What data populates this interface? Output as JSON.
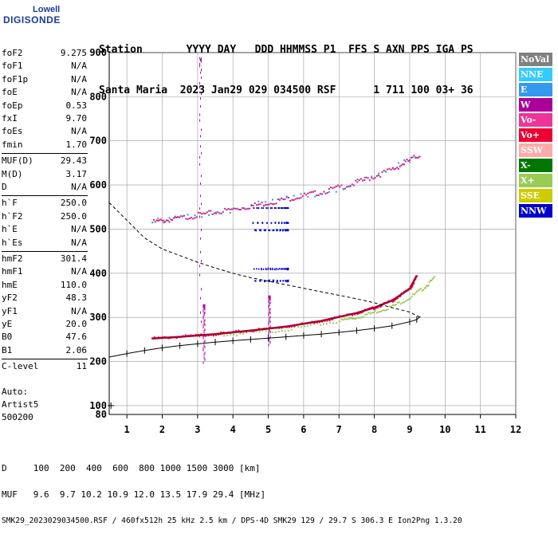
{
  "logo": {
    "line1": "Lowell",
    "line2": "DIGISONDE"
  },
  "header": {
    "line1": "Station       YYYY DAY   DDD HHMMSS P1  FFS S AXN PPS IGA PS",
    "line2": "Santa Maria  2023 Jan29 029 034500 RSF      1 711 100 03+ 36"
  },
  "params": [
    {
      "name": "foF2",
      "value": "9.275"
    },
    {
      "name": "foF1",
      "value": "N/A"
    },
    {
      "name": "foF1p",
      "value": "N/A"
    },
    {
      "name": "foE",
      "value": "N/A"
    },
    {
      "name": "foEp",
      "value": "0.53"
    },
    {
      "name": "fxI",
      "value": "9.70"
    },
    {
      "name": "foEs",
      "value": "N/A"
    },
    {
      "name": "fmin",
      "value": "1.70"
    },
    {
      "name": "MUF(D)",
      "value": "29.43"
    },
    {
      "name": "M(D)",
      "value": "3.17"
    },
    {
      "name": "D",
      "value": "N/A"
    },
    {
      "name": "h`F",
      "value": "250.0"
    },
    {
      "name": "h`F2",
      "value": "250.0"
    },
    {
      "name": "h`E",
      "value": "N/A"
    },
    {
      "name": "h`Es",
      "value": "N/A"
    },
    {
      "name": "hmF2",
      "value": "301.4"
    },
    {
      "name": "hmF1",
      "value": "N/A"
    },
    {
      "name": "hmE",
      "value": "110.0"
    },
    {
      "name": "yF2",
      "value": "48.3"
    },
    {
      "name": "yF1",
      "value": "N/A"
    },
    {
      "name": "yE",
      "value": "20.0"
    },
    {
      "name": "B0",
      "value": "47.6"
    },
    {
      "name": "B1",
      "value": "2.06"
    },
    {
      "name": "C-level",
      "value": "11"
    }
  ],
  "notes": {
    "auto": "Auto:",
    "artist": "Artist5",
    "version": "500200"
  },
  "legend": [
    {
      "label": "NoVal",
      "color": "#808080"
    },
    {
      "label": "NNE",
      "color": "#33ccff"
    },
    {
      "label": "E",
      "color": "#3399ee"
    },
    {
      "label": "W",
      "color": "#aa0099"
    },
    {
      "label": "Vo-",
      "color": "#ee3399"
    },
    {
      "label": "Vo+",
      "color": "#ee0033"
    },
    {
      "label": "SSW",
      "color": "#ffaaaa"
    },
    {
      "label": "X-",
      "color": "#007700"
    },
    {
      "label": "X+",
      "color": "#99cc55"
    },
    {
      "label": "SSE",
      "color": "#cccc00"
    },
    {
      "label": "NNW",
      "color": "#0000cc"
    }
  ],
  "footer": {
    "d_line": "D     100  200  400  600  800 1000 1500 3000 [km]",
    "muf_line": "MUF   9.6  9.7 10.2 10.9 12.0 13.5 17.9 29.4 [MHz]",
    "info_line": "SMK29_2023029034500.RSF / 460fx512h 25 kHz 2.5 km / DPS-4D SMK29 129 / 29.7 S 306.3 E Ion2Png 1.3.20"
  },
  "chart_data": {
    "type": "scatter",
    "xlim": [
      0.5,
      12
    ],
    "ylim": [
      80,
      900
    ],
    "xticks": [
      1,
      2,
      3,
      4,
      5,
      6,
      7,
      8,
      9,
      10,
      11,
      12
    ],
    "yticks": [
      100,
      200,
      300,
      400,
      500,
      600,
      700,
      800,
      900
    ],
    "grid": true,
    "profile_curve": {
      "x": [
        0.5,
        1.0,
        1.5,
        2.0,
        2.5,
        3.0,
        3.5,
        4.0,
        4.5,
        5.0,
        5.5,
        6.0,
        6.5,
        7.0,
        7.5,
        8.0,
        8.5,
        9.0,
        9.275
      ],
      "y": [
        560,
        520,
        480,
        455,
        440,
        425,
        412,
        400,
        390,
        382,
        374,
        366,
        358,
        350,
        342,
        333,
        322,
        312,
        301
      ]
    },
    "trace_curve": {
      "x": [
        0.5,
        1.0,
        1.5,
        2.0,
        2.5,
        3.0,
        3.5,
        4.0,
        4.5,
        5.0,
        5.5,
        6.0,
        6.5,
        7.0,
        7.5,
        8.0,
        8.5,
        9.0,
        9.2,
        9.3
      ],
      "y": [
        210,
        218,
        225,
        231,
        236,
        240,
        244,
        247,
        250,
        253,
        256,
        259,
        262,
        266,
        270,
        275,
        281,
        290,
        295,
        302
      ]
    },
    "o_trace": {
      "x": [
        1.7,
        2.5,
        3.5,
        4.5,
        5.5,
        6.5,
        7.5,
        8.0,
        8.5,
        9.0,
        9.2
      ],
      "y": [
        252,
        256,
        262,
        270,
        279,
        292,
        310,
        322,
        338,
        365,
        395
      ]
    },
    "x_trace": {
      "x": [
        3.0,
        4.0,
        5.0,
        6.0,
        7.0,
        7.5,
        8.0,
        8.5,
        9.0,
        9.4,
        9.7
      ],
      "y": [
        258,
        262,
        268,
        278,
        292,
        300,
        312,
        325,
        345,
        368,
        390
      ]
    },
    "upper_trace": {
      "x": [
        1.7,
        2.5,
        3.5,
        4.5,
        5.5,
        6.5,
        7.5,
        8.5,
        9.3
      ],
      "y": [
        515,
        525,
        538,
        552,
        568,
        584,
        605,
        635,
        670
      ]
    },
    "marker": {
      "x": 0.55,
      "y": 100
    }
  }
}
